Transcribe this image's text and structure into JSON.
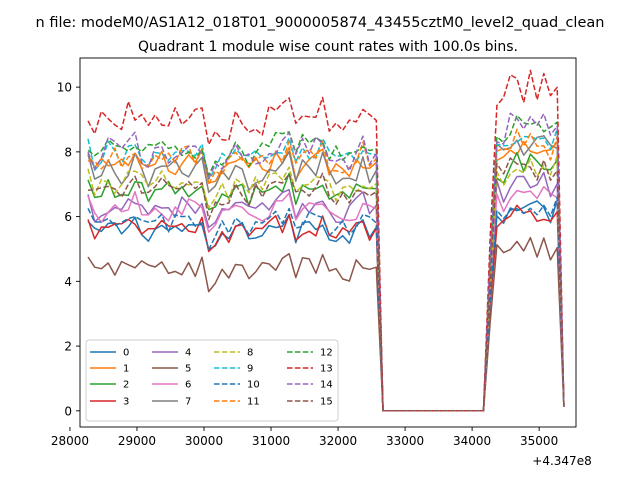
{
  "suptitle": "n file: modeM0/AS1A12_018T01_9000005874_43455cztM0_level2_quad_clean",
  "chart_data": {
    "type": "line",
    "title": "Quadrant 1 module wise count rates with 100.0s bins.",
    "xlabel": "",
    "ylabel": "",
    "offset_label": "+4.347e8",
    "xlim": [
      28150,
      35550
    ],
    "ylim": [
      -0.5,
      10.9
    ],
    "xticks": [
      28000,
      29000,
      30000,
      31000,
      32000,
      33000,
      34000,
      35000
    ],
    "xtick_labels": [
      "28000",
      "29000",
      "30000",
      "31000",
      "32000",
      "33000",
      "34000",
      "35000"
    ],
    "yticks": [
      0,
      2,
      4,
      6,
      8,
      10
    ],
    "ytick_labels": [
      "0",
      "2",
      "4",
      "6",
      "8",
      "10"
    ],
    "grid": false,
    "legend": {
      "placement": "lower-left",
      "columns": 4
    },
    "segments": [
      {
        "x_start": 28270,
        "x_end": 32570,
        "phase": "on"
      },
      {
        "x_start": 32670,
        "x_end": 34170,
        "phase": "off"
      },
      {
        "x_start": 34270,
        "x_end": 35370,
        "phase": "on"
      }
    ],
    "series": [
      {
        "name": "0",
        "color": "#1f77b4",
        "dash": "solid",
        "level1": 5.6,
        "level2": 6.2,
        "amp": 0.3
      },
      {
        "name": "1",
        "color": "#ff7f0e",
        "dash": "solid",
        "level1": 7.6,
        "level2": 8.0,
        "amp": 0.35
      },
      {
        "name": "2",
        "color": "#2ca02c",
        "dash": "solid",
        "level1": 6.8,
        "level2": 7.5,
        "amp": 0.35
      },
      {
        "name": "3",
        "color": "#d62728",
        "dash": "solid",
        "level1": 5.6,
        "level2": 6.0,
        "amp": 0.3
      },
      {
        "name": "4",
        "color": "#9467bd",
        "dash": "solid",
        "level1": 6.3,
        "level2": 6.9,
        "amp": 0.35
      },
      {
        "name": "5",
        "color": "#8c564b",
        "dash": "solid",
        "level1": 4.4,
        "level2": 5.0,
        "amp": 0.3
      },
      {
        "name": "6",
        "color": "#e377c2",
        "dash": "solid",
        "level1": 6.2,
        "level2": 6.6,
        "amp": 0.35
      },
      {
        "name": "7",
        "color": "#7f7f7f",
        "dash": "solid",
        "level1": 7.4,
        "level2": 8.2,
        "amp": 0.4
      },
      {
        "name": "8",
        "color": "#bcbd22",
        "dash": "dashed",
        "level1": 7.0,
        "level2": 7.4,
        "amp": 0.35
      },
      {
        "name": "9",
        "color": "#17becf",
        "dash": "dashed",
        "level1": 7.9,
        "level2": 8.3,
        "amp": 0.35
      },
      {
        "name": "10",
        "color": "#1f77b4",
        "dash": "dashed",
        "level1": 5.8,
        "level2": 6.3,
        "amp": 0.3
      },
      {
        "name": "11",
        "color": "#ff7f0e",
        "dash": "dashed",
        "level1": 7.8,
        "level2": 8.2,
        "amp": 0.35
      },
      {
        "name": "12",
        "color": "#2ca02c",
        "dash": "dashed",
        "level1": 8.1,
        "level2": 8.7,
        "amp": 0.35
      },
      {
        "name": "13",
        "color": "#d62728",
        "dash": "dashed",
        "level1": 9.0,
        "level2": 9.8,
        "amp": 0.45
      },
      {
        "name": "14",
        "color": "#9467bd",
        "dash": "dashed",
        "level1": 8.0,
        "level2": 8.7,
        "amp": 0.4
      },
      {
        "name": "15",
        "color": "#8c564b",
        "dash": "dashed",
        "level1": 6.8,
        "level2": 7.4,
        "amp": 0.35
      }
    ]
  }
}
